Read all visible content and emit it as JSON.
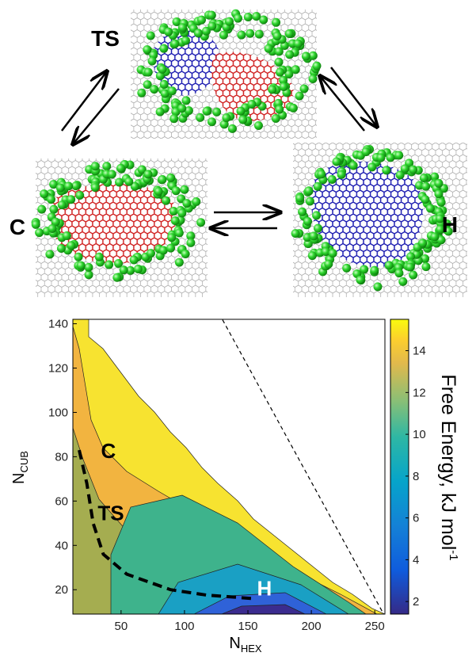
{
  "scheme": {
    "labels": [
      "TS",
      "C",
      "H"
    ]
  },
  "chart_data": {
    "type": "contour",
    "xlabel": "N",
    "xlabel_sub": "HEX",
    "ylabel": "N",
    "ylabel_sub": "CUB",
    "colorbar_label": "Free Energy, kJ mol",
    "colorbar_label_sup": "-1",
    "xlim": [
      12,
      258
    ],
    "xticks": [
      50,
      100,
      150,
      200,
      250
    ],
    "ylim": [
      9,
      142
    ],
    "yticks": [
      20,
      40,
      60,
      80,
      100,
      120,
      140
    ],
    "clim": [
      1.4,
      15.5
    ],
    "cticks": [
      2,
      4,
      6,
      8,
      10,
      12,
      14
    ],
    "path": {
      "x": [
        17,
        23,
        28,
        36,
        54.5,
        89,
        117,
        154
      ],
      "y": [
        83,
        68,
        50,
        36,
        27,
        20,
        17.6,
        16
      ]
    },
    "limit_line": {
      "x": [
        130,
        257
      ],
      "y": [
        141.8,
        9
      ]
    },
    "annotations": [
      {
        "text": "C",
        "x": 40,
        "y": 83,
        "color": "#000000"
      },
      {
        "text": "TS",
        "x": 42,
        "y": 55,
        "color": "#000000"
      },
      {
        "text": "H",
        "x": 163,
        "y": 21,
        "color": "#ffffff"
      }
    ]
  }
}
